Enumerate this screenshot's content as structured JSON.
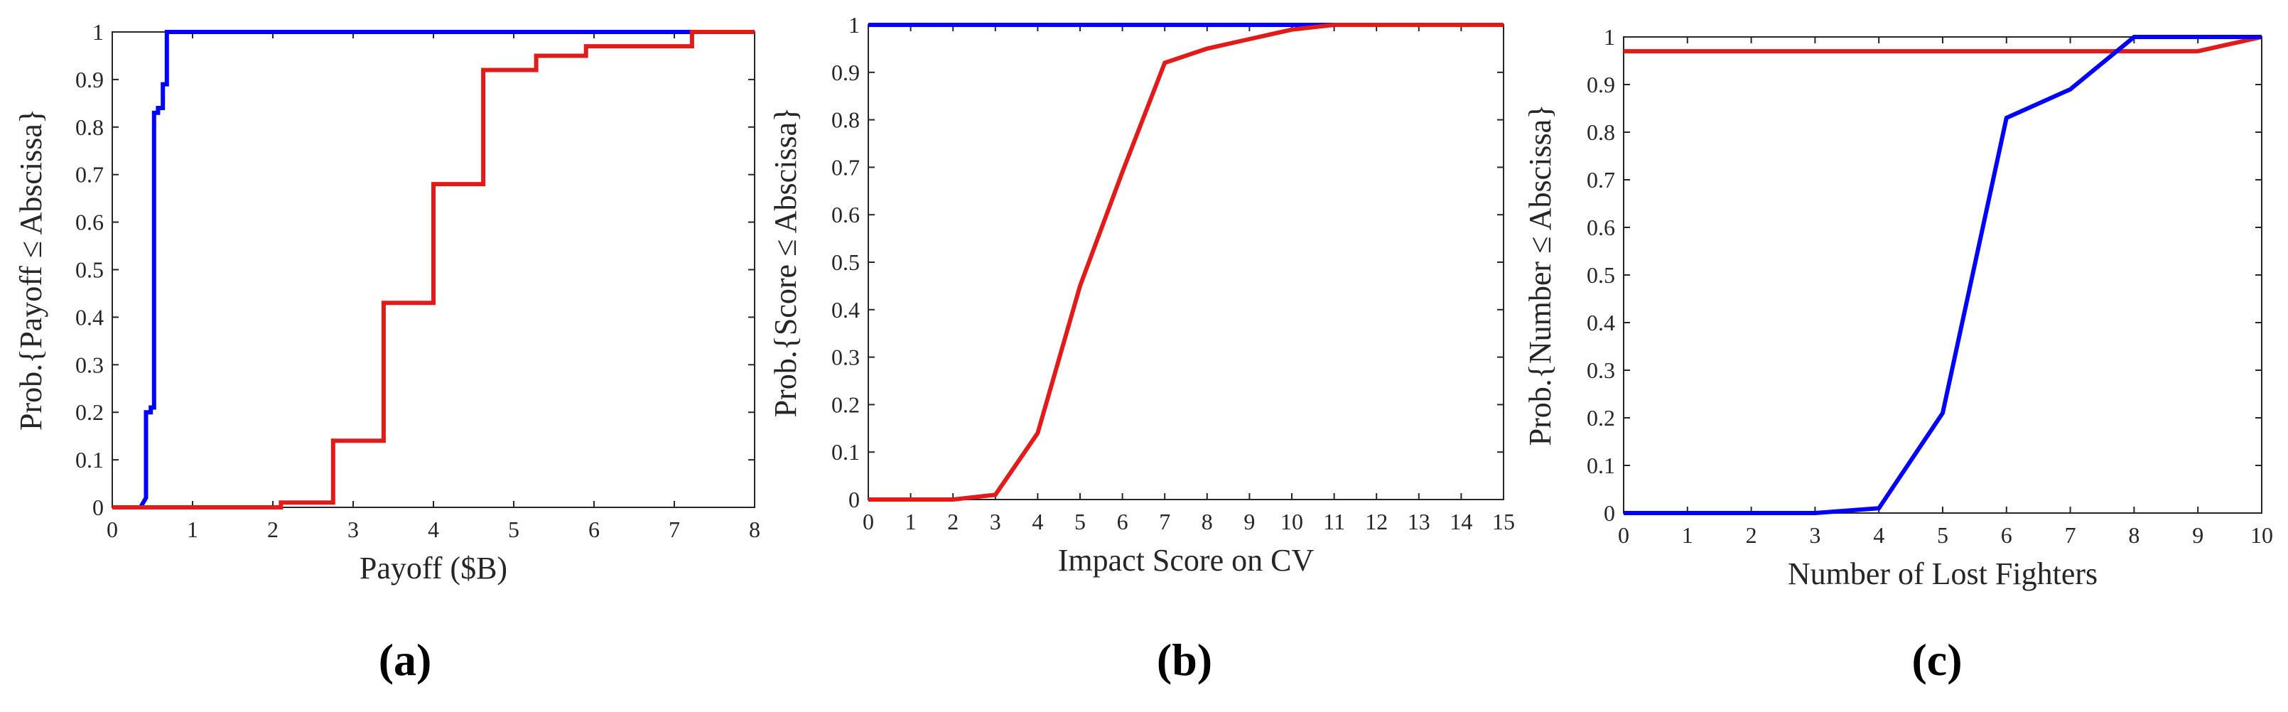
{
  "chart_data": [
    {
      "type": "line",
      "panel": "(a)",
      "xlabel": "Payoff ($B)",
      "ylabel": "Prob.{Payoff ≤ Abscissa}",
      "xlim": [
        0,
        8
      ],
      "ylim": [
        0,
        1
      ],
      "xticks": [
        0,
        1,
        2,
        3,
        4,
        5,
        6,
        7,
        8
      ],
      "yticks": [
        0,
        0.1,
        0.2,
        0.3,
        0.4,
        0.5,
        0.6,
        0.7,
        0.8,
        0.9,
        1
      ],
      "series": [
        {
          "color": "#0000ff",
          "x": [
            0,
            0.35,
            0.42,
            0.42,
            0.48,
            0.48,
            0.52,
            0.52,
            0.57,
            0.57,
            0.63,
            0.63,
            0.68,
            0.68,
            8
          ],
          "y": [
            0,
            0,
            0.02,
            0.2,
            0.2,
            0.21,
            0.21,
            0.83,
            0.83,
            0.84,
            0.84,
            0.89,
            0.89,
            1,
            1
          ]
        },
        {
          "color": "#e31a1a",
          "x": [
            0,
            2.1,
            2.1,
            2.75,
            2.75,
            3.38,
            3.38,
            4.0,
            4.0,
            4.62,
            4.62,
            5.28,
            5.28,
            5.9,
            5.9,
            7.22,
            7.22,
            8
          ],
          "y": [
            0,
            0,
            0.01,
            0.01,
            0.14,
            0.14,
            0.43,
            0.43,
            0.68,
            0.68,
            0.92,
            0.92,
            0.95,
            0.95,
            0.97,
            0.97,
            1,
            1
          ]
        }
      ]
    },
    {
      "type": "line",
      "panel": "(b)",
      "xlabel": "Impact Score on CV",
      "ylabel": "Prob.{Score ≤ Abscissa}",
      "xlim": [
        0,
        15
      ],
      "ylim": [
        0,
        1
      ],
      "xticks": [
        0,
        1,
        2,
        3,
        4,
        5,
        6,
        7,
        8,
        9,
        10,
        11,
        12,
        13,
        14,
        15
      ],
      "yticks": [
        0,
        0.1,
        0.2,
        0.3,
        0.4,
        0.5,
        0.6,
        0.7,
        0.8,
        0.9,
        1
      ],
      "series": [
        {
          "color": "#0000ff",
          "x": [
            0,
            15
          ],
          "y": [
            1,
            1
          ]
        },
        {
          "color": "#e31a1a",
          "x": [
            0,
            1,
            2,
            3,
            4,
            5,
            6,
            7,
            8,
            9,
            10,
            11,
            12,
            13,
            14,
            15
          ],
          "y": [
            0,
            0,
            0,
            0.01,
            0.14,
            0.45,
            0.69,
            0.92,
            0.95,
            0.97,
            0.99,
            1,
            1,
            1,
            1,
            1
          ]
        }
      ]
    },
    {
      "type": "line",
      "panel": "(c)",
      "xlabel": "Number of Lost Fighters",
      "ylabel": "Prob.{Number ≤ Abscissa}",
      "xlim": [
        0,
        10
      ],
      "ylim": [
        0,
        1
      ],
      "xticks": [
        0,
        1,
        2,
        3,
        4,
        5,
        6,
        7,
        8,
        9,
        10
      ],
      "yticks": [
        0,
        0.1,
        0.2,
        0.3,
        0.4,
        0.5,
        0.6,
        0.7,
        0.8,
        0.9,
        1
      ],
      "series": [
        {
          "color": "#e31a1a",
          "x": [
            0,
            1,
            2,
            3,
            4,
            5,
            6,
            7,
            8,
            9,
            10
          ],
          "y": [
            0.97,
            0.97,
            0.97,
            0.97,
            0.97,
            0.97,
            0.97,
            0.97,
            0.97,
            0.97,
            1
          ]
        },
        {
          "color": "#0000ff",
          "x": [
            0,
            1,
            2,
            3,
            4,
            5,
            6,
            7,
            8,
            9,
            10
          ],
          "y": [
            0,
            0,
            0,
            0,
            0.01,
            0.21,
            0.83,
            0.89,
            1,
            1,
            1
          ]
        }
      ]
    }
  ]
}
